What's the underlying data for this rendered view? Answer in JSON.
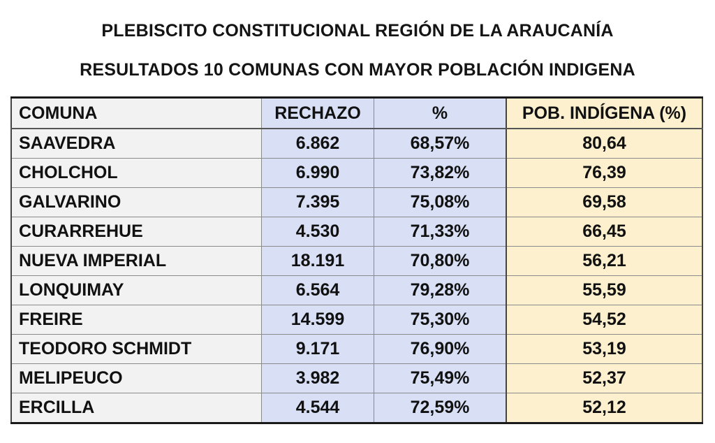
{
  "title_line_1": "PLEBISCITO CONSTITUCIONAL REGIÓN DE LA ARAUCANÍA",
  "title_line_2": "RESULTADOS 10 COMUNAS CON MAYOR POBLACIÓN INDIGENA",
  "table": {
    "headers": [
      "COMUNA",
      "RECHAZO",
      "%",
      "POB. INDÍGENA (%)"
    ],
    "rows": [
      [
        "SAAVEDRA",
        "6.862",
        "68,57%",
        "80,64"
      ],
      [
        "CHOLCHOL",
        "6.990",
        "73,82%",
        "76,39"
      ],
      [
        "GALVARINO",
        "7.395",
        "75,08%",
        "69,58"
      ],
      [
        "CURARREHUE",
        "4.530",
        "71,33%",
        "66,45"
      ],
      [
        "NUEVA IMPERIAL",
        "18.191",
        "70,80%",
        "56,21"
      ],
      [
        "LONQUIMAY",
        "6.564",
        "79,28%",
        "55,59"
      ],
      [
        "FREIRE",
        "14.599",
        "75,30%",
        "54,52"
      ],
      [
        "TEODORO SCHMIDT",
        "9.171",
        "76,90%",
        "53,19"
      ],
      [
        "MELIPEUCO",
        "3.982",
        "75,49%",
        "52,37"
      ],
      [
        "ERCILLA",
        "4.544",
        "72,59%",
        "52,12"
      ]
    ]
  },
  "colors": {
    "comuna_column": "#f2f2f2",
    "rechazo_columns": "#d9e0f5",
    "poblacion_column": "#fdf0cf"
  }
}
